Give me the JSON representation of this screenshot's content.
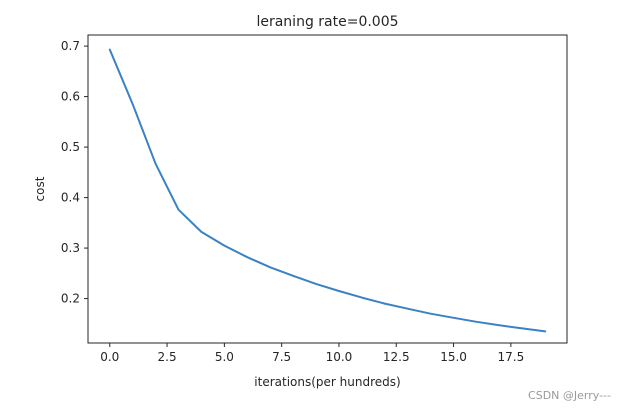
{
  "chart_data": {
    "type": "line",
    "title": "leraning rate=0.005",
    "xlabel": "iterations(per hundreds)",
    "ylabel": "cost",
    "xlim": [
      -0.95,
      19.95
    ],
    "ylim": [
      0.112,
      0.722
    ],
    "xticks": [
      0.0,
      2.5,
      5.0,
      7.5,
      10.0,
      12.5,
      15.0,
      17.5
    ],
    "xtick_labels": [
      "0.0",
      "2.5",
      "5.0",
      "7.5",
      "10.0",
      "12.5",
      "15.0",
      "17.5"
    ],
    "yticks": [
      0.2,
      0.3,
      0.4,
      0.5,
      0.6,
      0.7
    ],
    "ytick_labels": [
      "0.2",
      "0.3",
      "0.4",
      "0.5",
      "0.6",
      "0.7"
    ],
    "grid": false,
    "legend": false,
    "line_color": "#3b82c4",
    "x": [
      0,
      1,
      2,
      3,
      4,
      5,
      6,
      7,
      8,
      9,
      10,
      11,
      12,
      13,
      14,
      15,
      16,
      17,
      18,
      19
    ],
    "y": [
      0.693,
      0.585,
      0.467,
      0.376,
      0.332,
      0.305,
      0.282,
      0.262,
      0.245,
      0.229,
      0.215,
      0.202,
      0.19,
      0.18,
      0.17,
      0.162,
      0.154,
      0.147,
      0.141,
      0.135
    ]
  },
  "watermark": "CSDN @Jerry---"
}
